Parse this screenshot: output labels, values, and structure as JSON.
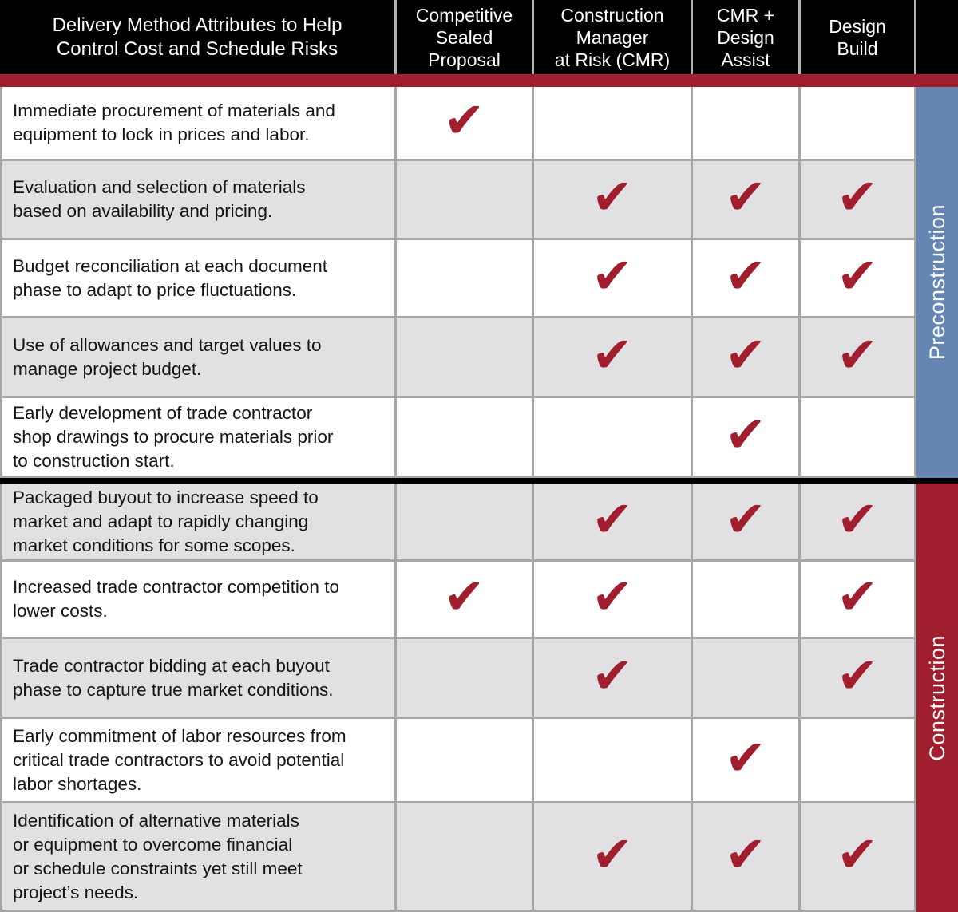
{
  "header": {
    "attribute_col": "Delivery Method Attributes to Help\nControl Cost and Schedule Risks",
    "methods": [
      "Competitive\nSealed\nProposal",
      "Construction\nManager\nat Risk (CMR)",
      "CMR +\nDesign\nAssist",
      "Design\nBuild"
    ]
  },
  "sections": {
    "preconstruction": "Preconstruction",
    "construction": "Construction"
  },
  "icons": {
    "check": "✔"
  },
  "colors": {
    "accent_red": "#A01E2D",
    "preconstruction_blue": "#6586B2",
    "row_gray": "#E1E1E3",
    "grid_gray": "#A6A6A6",
    "header_black": "#000000"
  },
  "rows": [
    {
      "section": "preconstruction",
      "text": "Immediate procurement of materials and\nequipment to lock in prices and labor.",
      "checks": [
        true,
        false,
        false,
        false
      ]
    },
    {
      "section": "preconstruction",
      "text": "Evaluation and selection of materials\nbased on availability and pricing.",
      "checks": [
        false,
        true,
        true,
        true
      ]
    },
    {
      "section": "preconstruction",
      "text": "Budget reconciliation at each document\nphase to adapt to price fluctuations.",
      "checks": [
        false,
        true,
        true,
        true
      ]
    },
    {
      "section": "preconstruction",
      "text": "Use of allowances and target values to\nmanage project budget.",
      "checks": [
        false,
        true,
        true,
        true
      ]
    },
    {
      "section": "preconstruction",
      "text": "Early development of trade contractor\nshop drawings to procure materials prior\nto construction start.",
      "checks": [
        false,
        false,
        true,
        false
      ]
    },
    {
      "section": "construction",
      "text": "Packaged buyout to increase speed to\nmarket and adapt to rapidly changing\nmarket conditions for some scopes.",
      "checks": [
        false,
        true,
        true,
        true
      ]
    },
    {
      "section": "construction",
      "text": "Increased trade contractor competition to\nlower costs.",
      "checks": [
        true,
        true,
        false,
        true
      ]
    },
    {
      "section": "construction",
      "text": "Trade contractor bidding at each buyout\nphase to capture true market conditions.",
      "checks": [
        false,
        true,
        false,
        true
      ]
    },
    {
      "section": "construction",
      "text": "Early commitment of labor resources from\ncritical trade contractors to avoid potential\nlabor shortages.",
      "checks": [
        false,
        false,
        true,
        false
      ]
    },
    {
      "section": "construction",
      "text": "Identification of alternative materials\nor equipment to overcome financial\nor schedule constraints yet still meet\nproject’s needs.",
      "checks": [
        false,
        true,
        true,
        true
      ]
    }
  ]
}
